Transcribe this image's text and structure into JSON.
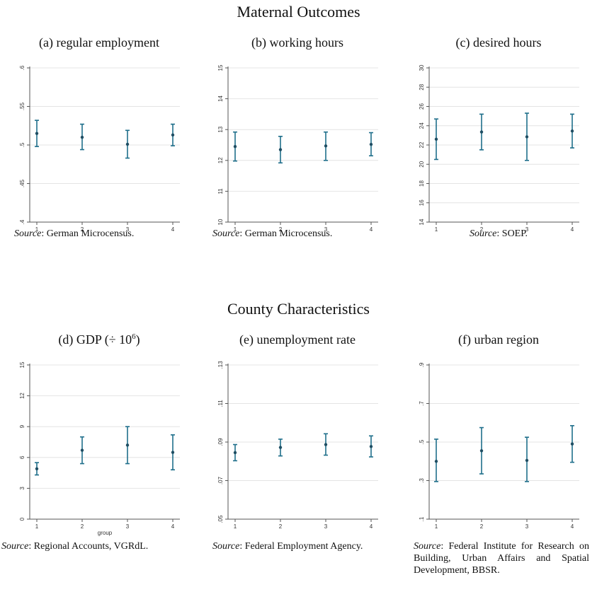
{
  "sections": {
    "top_title": "Maternal Outcomes",
    "bottom_title": "County Characteristics"
  },
  "source_prefix": "Source",
  "panels": [
    {
      "title": "(a) regular employment",
      "source_text": "German Microcensus."
    },
    {
      "title": "(b) working hours",
      "source_text": "German Microcensus."
    },
    {
      "title": "(c) desired hours",
      "source_text": "SOEP."
    },
    {
      "title_pre": "(d) GDP (÷ 10",
      "title_sup": "6",
      "title_post": ")",
      "source_text": "Regional Accounts, VGRdL."
    },
    {
      "title": "(e) unemployment rate",
      "source_text": "Federal Employment Agency."
    },
    {
      "title": "(f) urban region",
      "source_text": "Federal Institute for Research on Building, Urban Affairs and Spatial Development, BBSR."
    }
  ],
  "colors": {
    "marker": "#1f4e63",
    "errorbar": "#1f6f8b",
    "grid": "#e4e4e4",
    "axis": "#555555"
  },
  "chart_data": [
    {
      "type": "scatter",
      "title": "(a) regular employment",
      "x": [
        1,
        2,
        3,
        4
      ],
      "y": [
        0.515,
        0.51,
        0.501,
        0.513
      ],
      "ci_low": [
        0.498,
        0.494,
        0.483,
        0.499
      ],
      "ci_high": [
        0.532,
        0.527,
        0.519,
        0.527
      ],
      "yticks": [
        ".4",
        ".45",
        ".5",
        ".55",
        ".6"
      ],
      "ytick_values": [
        0.4,
        0.45,
        0.5,
        0.55,
        0.6
      ],
      "ylim": [
        0.4,
        0.6
      ],
      "xticks": [
        "1",
        "2",
        "3",
        "4"
      ],
      "xlabel": "",
      "ylabel": "",
      "grid": true
    },
    {
      "type": "scatter",
      "title": "(b) working hours",
      "x": [
        1,
        2,
        3,
        4
      ],
      "y": [
        12.45,
        12.35,
        12.47,
        12.52
      ],
      "ci_low": [
        11.98,
        11.92,
        12.0,
        12.15
      ],
      "ci_high": [
        12.92,
        12.78,
        12.92,
        12.9
      ],
      "yticks": [
        "10",
        "11",
        "12",
        "13",
        "14",
        "15"
      ],
      "ytick_values": [
        10,
        11,
        12,
        13,
        14,
        15
      ],
      "ylim": [
        10,
        15
      ],
      "xticks": [
        "1",
        "2",
        "3",
        "4"
      ],
      "xlabel": "",
      "ylabel": "",
      "grid": true
    },
    {
      "type": "scatter",
      "title": "(c) desired hours",
      "x": [
        1,
        2,
        3,
        4
      ],
      "y": [
        22.6,
        23.35,
        22.85,
        23.45
      ],
      "ci_low": [
        20.5,
        21.5,
        20.4,
        21.7
      ],
      "ci_high": [
        24.7,
        25.2,
        25.3,
        25.2
      ],
      "yticks": [
        "14",
        "16",
        "18",
        "20",
        "22",
        "24",
        "26",
        "28",
        "30"
      ],
      "ytick_values": [
        14,
        16,
        18,
        20,
        22,
        24,
        26,
        28,
        30
      ],
      "ylim": [
        14,
        30
      ],
      "xticks": [
        "1",
        "2",
        "3",
        "4"
      ],
      "xlabel": "",
      "ylabel": "",
      "grid": true
    },
    {
      "type": "scatter",
      "title": "(d) GDP (÷ 10^6)",
      "x": [
        1,
        2,
        3,
        4
      ],
      "y": [
        4.9,
        6.7,
        7.2,
        6.5
      ],
      "ci_low": [
        4.3,
        5.4,
        5.4,
        4.8
      ],
      "ci_high": [
        5.5,
        8.0,
        9.0,
        8.2
      ],
      "yticks": [
        "0",
        "3",
        "6",
        "9",
        "12",
        "15"
      ],
      "ytick_values": [
        0,
        3,
        6,
        9,
        12,
        15
      ],
      "ylim": [
        0,
        15
      ],
      "xticks": [
        "1",
        "2",
        "3",
        "4"
      ],
      "xlabel": "group",
      "ylabel": "",
      "grid": true
    },
    {
      "type": "scatter",
      "title": "(e) unemployment rate",
      "x": [
        1,
        2,
        3,
        4
      ],
      "y": [
        0.0845,
        0.0872,
        0.0887,
        0.0877
      ],
      "ci_low": [
        0.0803,
        0.0828,
        0.0832,
        0.0823
      ],
      "ci_high": [
        0.0887,
        0.0915,
        0.0943,
        0.0932
      ],
      "yticks": [
        ".05",
        ".07",
        ".09",
        ".11",
        ".13"
      ],
      "ytick_values": [
        0.05,
        0.07,
        0.09,
        0.11,
        0.13
      ],
      "ylim": [
        0.05,
        0.13
      ],
      "xticks": [
        "1",
        "2",
        "3",
        "4"
      ],
      "xlabel": "",
      "ylabel": "",
      "grid": true
    },
    {
      "type": "scatter",
      "title": "(f) urban region",
      "x": [
        1,
        2,
        3,
        4
      ],
      "y": [
        0.4,
        0.455,
        0.405,
        0.49
      ],
      "ci_low": [
        0.295,
        0.335,
        0.295,
        0.395
      ],
      "ci_high": [
        0.515,
        0.575,
        0.525,
        0.585
      ],
      "yticks": [
        ".1",
        ".3",
        ".5",
        ".7",
        ".9"
      ],
      "ytick_values": [
        0.1,
        0.3,
        0.5,
        0.7,
        0.9
      ],
      "ylim": [
        0.1,
        0.9
      ],
      "xticks": [
        "1",
        "2",
        "3",
        "4"
      ],
      "xlabel": "",
      "ylabel": "",
      "grid": true
    }
  ]
}
